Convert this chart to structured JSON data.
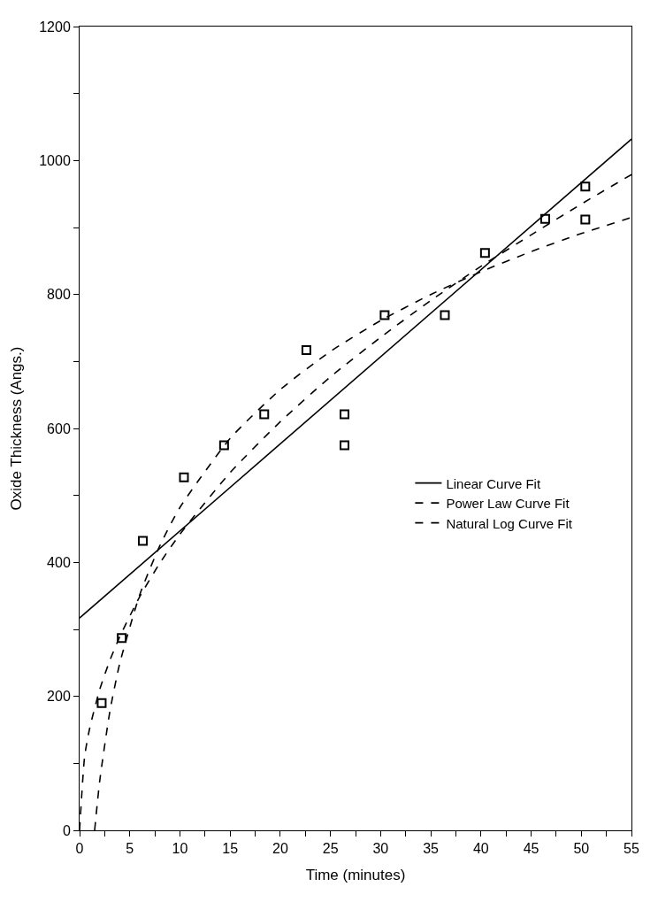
{
  "chart_data": {
    "type": "scatter",
    "xlabel": "Time (minutes)",
    "ylabel": "Oxide Thickness (Angs.)",
    "xlim": [
      0,
      55
    ],
    "ylim": [
      0,
      1200
    ],
    "xticks": [
      0,
      {
        "value": 2.5,
        "label": null
      },
      5,
      {
        "value": 7.5,
        "label": null
      },
      10,
      {
        "value": 12.5,
        "label": null
      },
      15,
      {
        "value": 17.5,
        "label": null
      },
      20,
      {
        "value": 22.5,
        "label": null
      },
      25,
      {
        "value": 27.5,
        "label": null
      },
      30,
      {
        "value": 32.5,
        "label": null
      },
      35,
      {
        "value": 37.5,
        "label": null
      },
      40,
      {
        "value": 42.5,
        "label": null
      },
      45,
      {
        "value": 47.5,
        "label": null
      },
      50,
      {
        "value": 52.5,
        "label": null
      },
      55
    ],
    "yticks": [
      0,
      {
        "value": 100,
        "label": null
      },
      200,
      {
        "value": 300,
        "label": null
      },
      400,
      {
        "value": 500,
        "label": null
      },
      600,
      {
        "value": 700,
        "label": null
      },
      800,
      {
        "value": 900,
        "label": null
      },
      1000,
      {
        "value": 1100,
        "label": null
      },
      1200
    ],
    "legend": "right",
    "series": [
      {
        "color": "#000000",
        "marker": "square",
        "x": [
          2.2,
          4.2,
          6.3,
          10.4,
          14.4,
          18.4,
          22.6,
          26.4,
          26.4,
          30.4,
          36.4,
          40.4,
          46.4,
          50.4,
          50.4
        ],
        "values": [
          190,
          287,
          432,
          527,
          575,
          621,
          717,
          621,
          575,
          769,
          769,
          862,
          913,
          961,
          912
        ]
      },
      {
        "type": "line",
        "name": "Linear Curve Fit",
        "color": "#000000",
        "line_style": "solid",
        "x": [
          0,
          55
        ],
        "values": [
          317,
          1032
        ]
      },
      {
        "type": "line",
        "name": "Power Law Curve Fit",
        "color": "#000000",
        "line_style": "dashed",
        "x": [
          0,
          0.5,
          1,
          2,
          3,
          4,
          6,
          8,
          10,
          15,
          20,
          25,
          30,
          35,
          40,
          45,
          50,
          55
        ],
        "values": [
          0,
          110,
          152,
          210,
          253,
          289,
          349,
          399,
          442,
          534,
          610,
          677,
          736,
          791,
          842,
          889,
          935,
          979
        ]
      },
      {
        "type": "line",
        "name": "Natural Log Curve Fit",
        "color": "#000000",
        "line_style": "dashed",
        "x": [
          1.5,
          2,
          3,
          4,
          6,
          8,
          10,
          15,
          20,
          25,
          30,
          35,
          40,
          45,
          50,
          55
        ],
        "values": [
          0,
          73,
          176,
          249,
          352,
          425,
          482,
          585,
          658,
          715,
          761,
          800,
          834,
          864,
          891,
          915
        ]
      }
    ]
  }
}
